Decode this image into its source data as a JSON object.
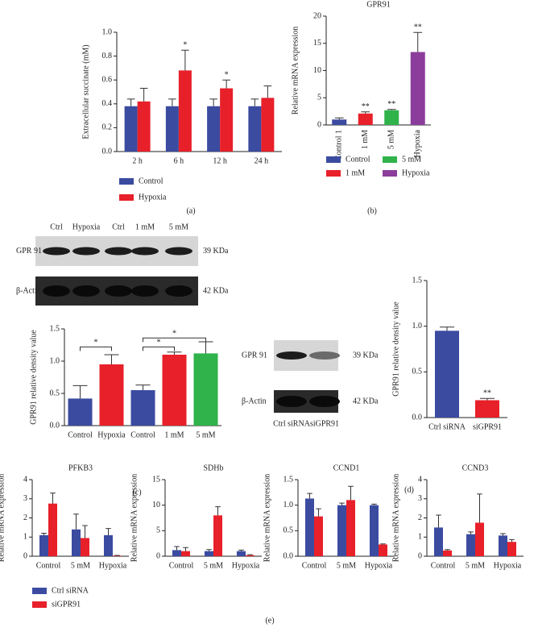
{
  "panel_labels": [
    "(a)",
    "(b)",
    "(c)",
    "(d)",
    "(e)"
  ],
  "blots": [
    {
      "lanes": [
        "Ctrl",
        "Hypoxia",
        "Ctrl",
        "1 mM",
        "5 mM"
      ],
      "rows": [
        {
          "name": "GPR 91",
          "size": "39 KDa"
        },
        {
          "name": "β-Actin",
          "size": "42 KDa"
        }
      ]
    },
    {
      "lanes": [
        "Ctrl siRNA",
        "siGPR91"
      ],
      "rows": [
        {
          "name": "GPR 91",
          "size": "39 KDa"
        },
        {
          "name": "β-Actin",
          "size": "42 KDa"
        }
      ]
    }
  ],
  "chart_data": [
    {
      "type": "bar",
      "ylabel": "Extracellular succinate (mM)",
      "categories": [
        "2 h",
        "6 h",
        "12 h",
        "24 h"
      ],
      "series": [
        {
          "name": "Control",
          "color": "#3b4ba0",
          "values": [
            0.38,
            0.38,
            0.38,
            0.38
          ],
          "errors": [
            0.06,
            0.06,
            0.06,
            0.06
          ]
        },
        {
          "name": "Hypoxia",
          "color": "#e8202a",
          "values": [
            0.42,
            0.68,
            0.53,
            0.45
          ],
          "errors": [
            0.11,
            0.17,
            0.07,
            0.1
          ]
        }
      ],
      "annotations": [
        null,
        "*",
        "*",
        null
      ],
      "ylim": [
        0,
        1
      ],
      "yticks": [
        {
          "value": 0,
          "label": "0.0"
        },
        {
          "value": 0.2,
          "label": "0.2"
        },
        {
          "value": 0.4,
          "label": "0.4"
        },
        {
          "value": 0.6,
          "label": "0.6"
        },
        {
          "value": 0.8,
          "label": "0.8"
        },
        {
          "value": 1,
          "label": "1.0"
        }
      ]
    },
    {
      "type": "bar",
      "title": "GPR91",
      "ylabel": "Relative mRNA expression",
      "categories": [
        "Control 1",
        "1 mM",
        "5 mM",
        "Hypoxia"
      ],
      "values": [
        1,
        2.1,
        2.7,
        13.4
      ],
      "errors": [
        0.3,
        0.3,
        0.15,
        3.6
      ],
      "colors": [
        "#3b4ba0",
        "#e8202a",
        "#2fb34a",
        "#8b3d9c"
      ],
      "annotations": [
        null,
        "**",
        "**",
        "**"
      ],
      "legend": [
        "Control",
        "1 mM",
        "5 mM",
        "Hypoxia"
      ],
      "ylim": [
        0,
        20
      ],
      "yticks": [
        0,
        5,
        10,
        15,
        20
      ]
    },
    {
      "type": "bar",
      "ylabel": "GPR91 relative density value",
      "categories": [
        "Control",
        "Hypoxia",
        "Control",
        "1 mM",
        "5 mM"
      ],
      "values": [
        0.42,
        0.95,
        0.55,
        1.1,
        1.12
      ],
      "errors": [
        0.2,
        0.15,
        0.08,
        0.04,
        0.18
      ],
      "colors": [
        "#3b4ba0",
        "#e8202a",
        "#3b4ba0",
        "#e8202a",
        "#2fb34a"
      ],
      "significance": [
        "*",
        "*",
        "*"
      ],
      "ylim": [
        0,
        1.5
      ],
      "yticks": [
        {
          "value": 0,
          "label": "0.0"
        },
        {
          "value": 0.5,
          "label": "0.5"
        },
        {
          "value": 1,
          "label": "1.0"
        },
        {
          "value": 1.5,
          "label": "1.5"
        }
      ]
    },
    {
      "type": "bar",
      "ylabel": "GPR91 relative density value",
      "categories": [
        "Ctrl siRNA",
        "siGPR91"
      ],
      "values": [
        0.95,
        0.19
      ],
      "errors": [
        0.04,
        0.02
      ],
      "colors": [
        "#3b4ba0",
        "#e8202a"
      ],
      "annotations": [
        null,
        "**"
      ],
      "ylim": [
        0,
        1.5
      ],
      "yticks": [
        {
          "value": 0,
          "label": "0.0"
        },
        {
          "value": 0.5,
          "label": "0.5"
        },
        {
          "value": 1,
          "label": "1.0"
        },
        {
          "value": 1.5,
          "label": "1.5"
        }
      ]
    },
    {
      "type": "bar",
      "title": "PFKB3",
      "ylabel": "Relative mRNA expression",
      "categories": [
        "Control",
        "5 mM",
        "Hypoxia"
      ],
      "series": [
        {
          "name": "Ctrl siRNA",
          "color": "#3b4ba0",
          "values": [
            1.1,
            1.4,
            1.1
          ],
          "errors": [
            0.1,
            0.8,
            0.35
          ]
        },
        {
          "name": "siGPR91",
          "color": "#e8202a",
          "values": [
            2.75,
            0.95,
            0.03
          ],
          "errors": [
            0.55,
            0.65,
            0.01
          ]
        }
      ],
      "ylim": [
        0,
        4
      ],
      "yticks": [
        0,
        1,
        2,
        3,
        4
      ]
    },
    {
      "type": "bar",
      "title": "SDHb",
      "ylabel": "Relative mRNA expression",
      "categories": [
        "Control",
        "5 mM",
        "Hypoxia"
      ],
      "series": [
        {
          "color": "#3b4ba0",
          "values": [
            1.2,
            1.0,
            1.0
          ],
          "errors": [
            0.7,
            0.3,
            0.2
          ]
        },
        {
          "color": "#e8202a",
          "values": [
            1.0,
            8.0,
            0.2
          ],
          "errors": [
            0.7,
            1.7,
            0.1
          ]
        }
      ],
      "ylim": [
        0,
        15
      ],
      "yticks": [
        0,
        5,
        10,
        15
      ]
    },
    {
      "type": "bar",
      "title": "CCND1",
      "ylabel": "Relative mRNA expression",
      "categories": [
        "Control",
        "5 mM",
        "Hypoxia"
      ],
      "series": [
        {
          "color": "#3b4ba0",
          "values": [
            1.13,
            1.0,
            1.0
          ],
          "errors": [
            0.1,
            0.04,
            0.02
          ]
        },
        {
          "color": "#e8202a",
          "values": [
            0.78,
            1.1,
            0.23
          ],
          "errors": [
            0.15,
            0.27,
            0.01
          ]
        }
      ],
      "ylim": [
        0,
        1.5
      ],
      "yticks": [
        {
          "value": 0,
          "label": "0.0"
        },
        {
          "value": 0.5,
          "label": "0.5"
        },
        {
          "value": 1,
          "label": "1.0"
        },
        {
          "value": 1.5,
          "label": "1.5"
        }
      ]
    },
    {
      "type": "bar",
      "title": "CCND3",
      "ylabel": "Relative mRNA expression",
      "categories": [
        "Control",
        "5 mM",
        "Hypoxia"
      ],
      "series": [
        {
          "color": "#3b4ba0",
          "values": [
            1.5,
            1.15,
            1.08
          ],
          "errors": [
            0.65,
            0.12,
            0.1
          ]
        },
        {
          "color": "#e8202a",
          "values": [
            0.3,
            1.75,
            0.75
          ],
          "errors": [
            0.05,
            1.5,
            0.12
          ]
        }
      ],
      "ylim": [
        0,
        4
      ],
      "yticks": [
        0,
        1,
        2,
        3,
        4
      ]
    }
  ]
}
